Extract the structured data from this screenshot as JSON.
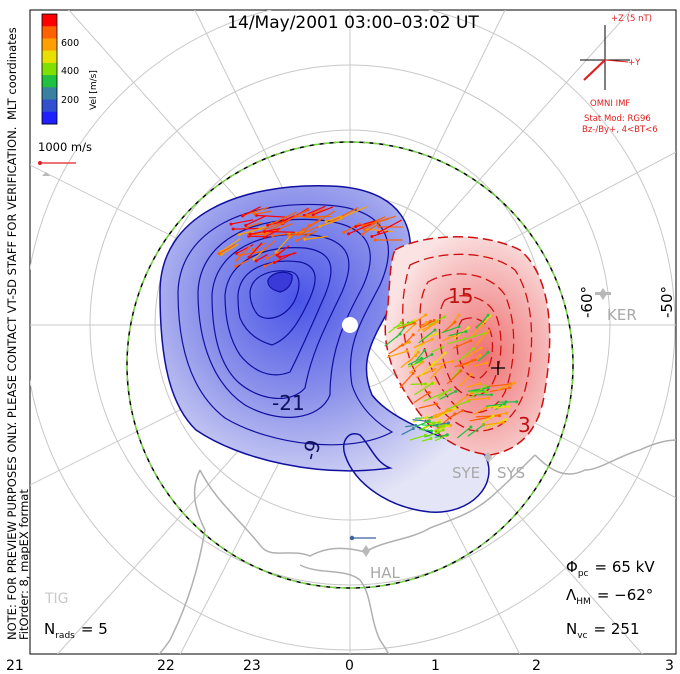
{
  "title": "14/May/2001 03:00–03:02 UT",
  "side_note_line1": "NOTE: FOR PREVIEW PURPOSES ONLY. PLEASE CONTACT VT-SD STAFF FOR VERIFICATION.",
  "side_note_line2": "FitOrder: 8, mapEX format",
  "coord_label": "MLT coordinates",
  "colorbar": {
    "label": "Vel [m/s]",
    "ticks": [
      "600",
      "400",
      "200"
    ],
    "colors": [
      "#ff0000",
      "#ff6000",
      "#ffa000",
      "#e8e000",
      "#80e000",
      "#20c040",
      "#3a80a0",
      "#3050d0",
      "#2020ff"
    ]
  },
  "ref_vector_label": "1000 m/s",
  "imf": {
    "scale_label": "+Z (5 nT)",
    "y_label": "+Y",
    "source": "OMNI IMF",
    "model_line1": "Stat Mod: RG96",
    "model_line2": "Bz-/By+, 4<BT<6"
  },
  "lat_labels": [
    "-60°",
    "-50°"
  ],
  "stations": [
    "KER",
    "SYE",
    "SYS",
    "HAL",
    "TIG"
  ],
  "contour_labels": [
    "-21",
    "-9",
    "15",
    "3"
  ],
  "stats": {
    "phi_pc": "Φ",
    "phi_pc_sub": "pc",
    "phi_pc_value": "= 65 kV",
    "lambda_hm": "Λ",
    "lambda_hm_sub": "HM",
    "lambda_hm_value": "= −62°",
    "n_vc": "N",
    "n_vc_sub": "vc",
    "n_vc_value": "= 251",
    "n_rads": "N",
    "n_rads_sub": "rads",
    "n_rads_value": "= 5"
  },
  "mlt_ticks": [
    "21",
    "22",
    "23",
    "0",
    "1",
    "2",
    "3"
  ],
  "chart_data": {
    "type": "contour",
    "title": "14/May/2001 03:00–03:02 UT",
    "xlabel": "MLT",
    "x_ticks": [
      "21",
      "22",
      "23",
      "0",
      "1",
      "2",
      "3"
    ],
    "potential_contours_kV": [
      -27,
      -21,
      -15,
      -9,
      -3,
      3,
      9,
      15,
      21,
      27
    ],
    "labeled_contours_kV": [
      -21,
      -9,
      3,
      15
    ],
    "cross_polar_cap_potential_kV": 65,
    "heppner_maynard_boundary_deg": -62,
    "n_vectors": 251,
    "n_radars": 5,
    "velocity_scale_m_s": [
      0,
      800
    ],
    "colorbar_ticks_m_s": [
      200,
      400,
      600
    ],
    "reference_vector_m_s": 1000
  }
}
